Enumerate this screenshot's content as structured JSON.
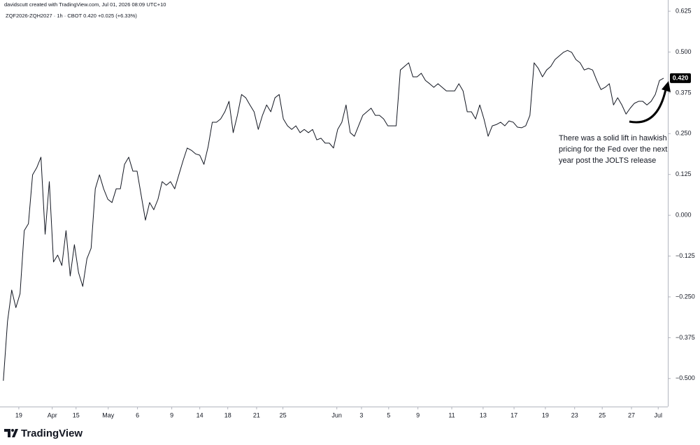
{
  "header": "davidscutt created with TradingView.com, Jul 01, 2026 08:09 UTC+10",
  "brand": "TradingView",
  "chart_data": {
    "type": "line",
    "legend": {
      "symbol": "ZQF2026-ZQH2027 · 1h · CBOT",
      "last": "0.420",
      "change": "+0.025 (+6.33%)"
    },
    "annotation": [
      "There was a solid lift in hawkish",
      "pricing for the Fed over the next",
      "year post the JOLTS release"
    ],
    "price_label": {
      "value": 0.42,
      "label": "0.420"
    },
    "x": [
      0,
      1,
      2,
      3,
      4,
      5,
      6,
      7,
      8,
      9,
      10,
      11,
      12,
      13,
      14,
      15,
      16,
      17,
      18,
      19,
      20,
      21,
      22,
      23,
      24,
      25,
      26,
      27,
      28,
      29,
      30,
      31,
      32,
      33,
      34,
      35,
      36,
      37,
      38,
      39,
      40,
      41,
      42,
      43,
      44,
      45,
      46,
      47,
      48,
      49,
      50,
      51,
      52,
      53,
      54,
      55,
      56,
      57,
      58,
      59,
      60,
      61,
      62,
      63,
      64,
      65,
      66,
      67,
      68,
      69,
      70,
      71,
      72,
      73,
      74,
      75,
      76,
      77,
      78,
      79,
      80,
      81,
      82,
      83,
      84,
      85,
      86,
      87,
      88,
      89,
      90,
      91,
      92,
      93,
      94,
      95,
      96,
      97,
      98,
      99,
      100,
      101,
      102,
      103,
      104,
      105,
      106,
      107,
      108,
      109,
      110,
      111,
      112,
      113,
      114,
      115,
      116,
      117,
      118,
      119,
      120,
      121,
      122,
      123,
      124,
      125,
      126,
      127,
      128,
      129,
      130,
      131,
      132,
      133,
      134,
      135,
      136,
      137,
      138,
      139,
      140,
      141,
      142,
      143,
      144,
      145,
      146,
      147,
      148,
      149,
      150,
      151,
      152,
      153,
      154,
      155,
      156,
      157,
      158
    ],
    "series": [
      {
        "name": "ZQF2026-ZQH2027",
        "color": "#131722",
        "values": [
          -0.507,
          -0.325,
          -0.229,
          -0.283,
          -0.24,
          -0.047,
          -0.026,
          0.124,
          0.146,
          0.178,
          -0.058,
          0.103,
          -0.143,
          -0.122,
          -0.154,
          -0.047,
          -0.186,
          -0.09,
          -0.176,
          -0.218,
          -0.133,
          -0.101,
          0.081,
          0.124,
          0.081,
          0.049,
          0.039,
          0.081,
          0.081,
          0.156,
          0.178,
          0.135,
          0.135,
          0.06,
          -0.015,
          0.039,
          0.017,
          0.049,
          0.103,
          0.092,
          0.103,
          0.081,
          0.124,
          0.167,
          0.206,
          0.199,
          0.188,
          0.184,
          0.156,
          0.21,
          0.285,
          0.285,
          0.295,
          0.317,
          0.349,
          0.253,
          0.306,
          0.37,
          0.36,
          0.338,
          0.317,
          0.263,
          0.306,
          0.338,
          0.317,
          0.36,
          0.37,
          0.295,
          0.274,
          0.263,
          0.274,
          0.253,
          0.263,
          0.253,
          0.263,
          0.231,
          0.236,
          0.221,
          0.221,
          0.206,
          0.263,
          0.285,
          0.338,
          0.253,
          0.242,
          0.274,
          0.306,
          0.317,
          0.328,
          0.306,
          0.306,
          0.295,
          0.274,
          0.274,
          0.274,
          0.445,
          0.456,
          0.467,
          0.424,
          0.424,
          0.435,
          0.413,
          0.403,
          0.392,
          0.403,
          0.392,
          0.381,
          0.381,
          0.381,
          0.403,
          0.381,
          0.317,
          0.317,
          0.295,
          0.338,
          0.295,
          0.242,
          0.274,
          0.278,
          0.285,
          0.274,
          0.289,
          0.285,
          0.27,
          0.268,
          0.274,
          0.306,
          0.467,
          0.45,
          0.424,
          0.445,
          0.456,
          0.477,
          0.488,
          0.499,
          0.505,
          0.499,
          0.477,
          0.467,
          0.445,
          0.45,
          0.445,
          0.413,
          0.385,
          0.392,
          0.403,
          0.338,
          0.36,
          0.338,
          0.31,
          0.328,
          0.343,
          0.349,
          0.349,
          0.338,
          0.349,
          0.37,
          0.413,
          0.42
        ]
      }
    ],
    "xlim": [
      -0.8,
      159
    ],
    "ylim": [
      -0.586,
      0.638
    ],
    "xticks": [
      {
        "value": 3.7,
        "label": "19"
      },
      {
        "value": 11.7,
        "label": "Apr"
      },
      {
        "value": 17.4,
        "label": "15"
      },
      {
        "value": 25.1,
        "label": "May"
      },
      {
        "value": 32.1,
        "label": "6"
      },
      {
        "value": 40.3,
        "label": "9"
      },
      {
        "value": 47.0,
        "label": "14"
      },
      {
        "value": 53.7,
        "label": "18"
      },
      {
        "value": 60.6,
        "label": "21"
      },
      {
        "value": 66.9,
        "label": "25"
      },
      {
        "value": 79.8,
        "label": "Jun"
      },
      {
        "value": 85.7,
        "label": "3"
      },
      {
        "value": 92.2,
        "label": "5"
      },
      {
        "value": 99.2,
        "label": "9"
      },
      {
        "value": 107.3,
        "label": "11"
      },
      {
        "value": 114.8,
        "label": "13"
      },
      {
        "value": 122.2,
        "label": "17"
      },
      {
        "value": 129.7,
        "label": "19"
      },
      {
        "value": 136.7,
        "label": "23"
      },
      {
        "value": 143.3,
        "label": "25"
      },
      {
        "value": 150.3,
        "label": "27"
      },
      {
        "value": 156.7,
        "label": "Jul"
      }
    ],
    "yticks": [
      0.625,
      {
        "value": 0.5,
        "label": "0.500"
      },
      0.375,
      {
        "value": 0.25,
        "label": "0.250"
      },
      0.125,
      {
        "value": 0,
        "label": "0.000"
      },
      {
        "value": -0.125,
        "label": "−0.125"
      },
      {
        "value": -0.25,
        "label": "−0.250"
      },
      {
        "value": -0.375,
        "label": "−0.375"
      },
      {
        "value": -0.5,
        "label": "−0.500"
      }
    ]
  }
}
